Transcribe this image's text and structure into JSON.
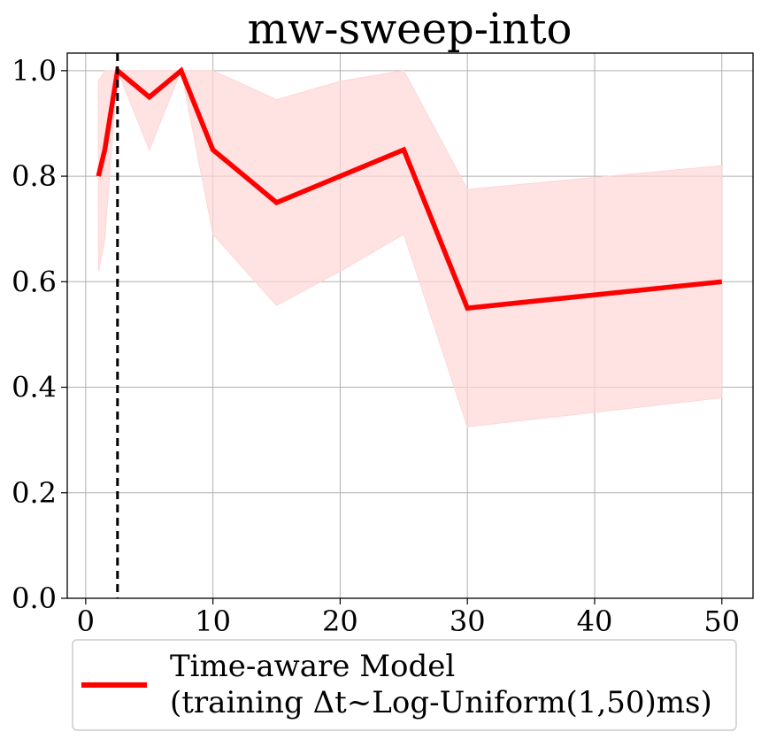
{
  "chart_data": {
    "type": "line",
    "title": "mw-sweep-into",
    "xlabel": "",
    "ylabel": "",
    "xlim": [
      -1.45,
      52.45
    ],
    "ylim": [
      0.0,
      1.0333
    ],
    "x_ticks": [
      0,
      10,
      20,
      30,
      40,
      50
    ],
    "y_ticks": [
      0.0,
      0.2,
      0.4,
      0.6,
      0.8,
      1.0
    ],
    "x_tick_labels": [
      "0",
      "10",
      "20",
      "30",
      "40",
      "50"
    ],
    "y_tick_labels": [
      "0.0",
      "0.2",
      "0.4",
      "0.6",
      "0.8",
      "1.0"
    ],
    "grid": true,
    "vline": {
      "x": 2.5,
      "style": "dashed",
      "color": "#000000"
    },
    "series": [
      {
        "name": "Time-aware Model\n(training Δt~Log-Uniform(1,50)ms)",
        "color": "#ff0000",
        "band_color": "#ffd6d6",
        "x": [
          1,
          1.5,
          2.5,
          5,
          7.5,
          10,
          15,
          20,
          25,
          30,
          50
        ],
        "y": [
          0.8,
          0.85,
          1.0,
          0.95,
          1.0,
          0.85,
          0.75,
          0.8,
          0.85,
          0.55,
          0.6
        ],
        "lower": [
          0.62,
          0.68,
          1.0,
          0.85,
          1.0,
          0.69,
          0.555,
          0.62,
          0.69,
          0.325,
          0.38
        ],
        "upper": [
          0.98,
          1.0,
          1.0,
          1.0,
          1.0,
          1.0,
          0.945,
          0.98,
          1.0,
          0.775,
          0.82
        ]
      }
    ],
    "legend": {
      "placement": "bottom",
      "lines": [
        "Time-aware Model",
        "(training Δt~Log-Uniform(1,50)ms)"
      ]
    }
  }
}
